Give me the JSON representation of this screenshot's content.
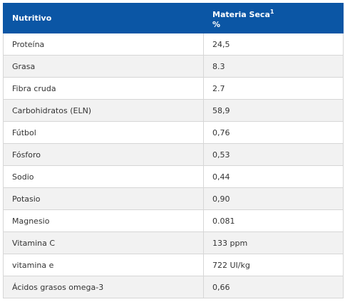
{
  "table": {
    "headers": {
      "nutrient": "Nutritivo",
      "dry_matter": "Materia Seca",
      "dry_matter_sup": "1",
      "dry_matter_unit": "%"
    },
    "rows": [
      {
        "nutrient": "Proteína",
        "value": "24,5"
      },
      {
        "nutrient": "Grasa",
        "value": "8.3"
      },
      {
        "nutrient": "Fibra cruda",
        "value": "2.7"
      },
      {
        "nutrient": "Carbohidratos (ELN)",
        "value": "58,9"
      },
      {
        "nutrient": "Fútbol",
        "value": "0,76"
      },
      {
        "nutrient": "Fósforo",
        "value": "0,53"
      },
      {
        "nutrient": "Sodio",
        "value": "0,44"
      },
      {
        "nutrient": "Potasio",
        "value": "0,90"
      },
      {
        "nutrient": "Magnesio",
        "value": "0.081"
      },
      {
        "nutrient": "Vitamina C",
        "value": "133 ppm"
      },
      {
        "nutrient": "vitamina e",
        "value": "722 UI/kg"
      },
      {
        "nutrient": "Ácidos grasos omega-3",
        "value": "0,66"
      }
    ]
  }
}
